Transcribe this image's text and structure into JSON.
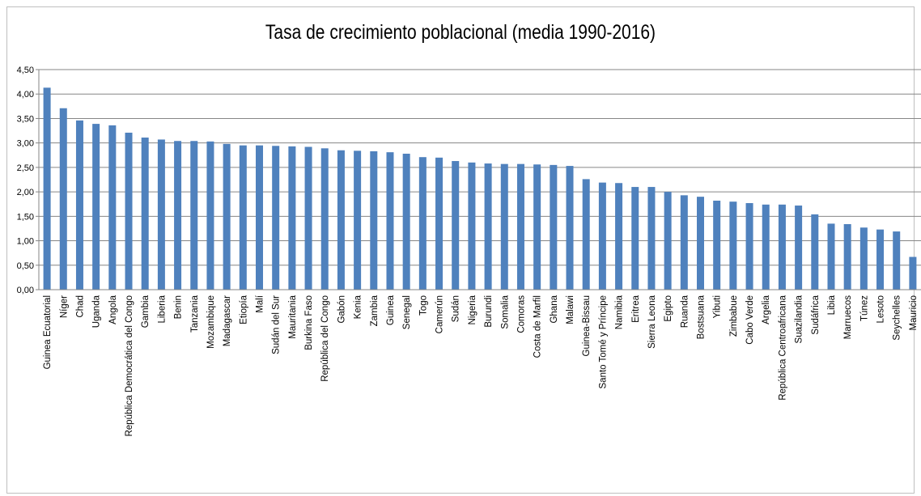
{
  "chart_data": {
    "type": "bar",
    "title": "Tasa de crecimiento poblacional (media 1990-2016)",
    "xlabel": "",
    "ylabel": "",
    "ylim": [
      0,
      4.5
    ],
    "yticks": [
      "0,00",
      "0,50",
      "1,00",
      "1,50",
      "2,00",
      "2,50",
      "3,00",
      "3,50",
      "4,00",
      "4,50"
    ],
    "grid": true,
    "legend": "none",
    "bar_color": "#4f81bd",
    "categories": [
      "Guinea Ecuatorial",
      "Níger",
      "Chad",
      "Uganda",
      "Angola",
      "República Democrática del Congo",
      "Gambia",
      "Liberia",
      "Benin",
      "Tanzania",
      "Mozambique",
      "Madagascar",
      "Etiopía",
      "Malí",
      "Sudán del Sur",
      "Mauritania",
      "Burkina Faso",
      "República del Congo",
      "Gabón",
      "Kenia",
      "Zambia",
      "Guinea",
      "Senegal",
      "Togo",
      "Camerún",
      "Sudán",
      "Nigeria",
      "Burundi",
      "Somalia",
      "Comoras",
      "Costa de Marfil",
      "Ghana",
      "Malawi",
      "Guinea-Bissau",
      "Santo Tomé y Príncipe",
      "Namibia",
      "Eritrea",
      "Sierra Leona",
      "Egipto",
      "Ruanda",
      "Bostsuana",
      "Yibuti",
      "Zimbabue",
      "Cabo Verde",
      "Argelia",
      "República Centroafricana",
      "Suazilandia",
      "Sudáfrica",
      "Libia",
      "Marruecos",
      "Túnez",
      "Lesoto",
      "Seychelles",
      "Mauricio"
    ],
    "values": [
      4.13,
      3.71,
      3.46,
      3.39,
      3.36,
      3.21,
      3.11,
      3.07,
      3.04,
      3.04,
      3.03,
      2.98,
      2.95,
      2.95,
      2.94,
      2.93,
      2.92,
      2.89,
      2.85,
      2.84,
      2.83,
      2.81,
      2.78,
      2.71,
      2.7,
      2.63,
      2.6,
      2.58,
      2.57,
      2.57,
      2.56,
      2.55,
      2.53,
      2.26,
      2.19,
      2.18,
      2.1,
      2.1,
      2.0,
      1.93,
      1.9,
      1.82,
      1.8,
      1.77,
      1.74,
      1.74,
      1.72,
      1.54,
      1.35,
      1.34,
      1.27,
      1.23,
      1.19,
      0.67
    ]
  }
}
